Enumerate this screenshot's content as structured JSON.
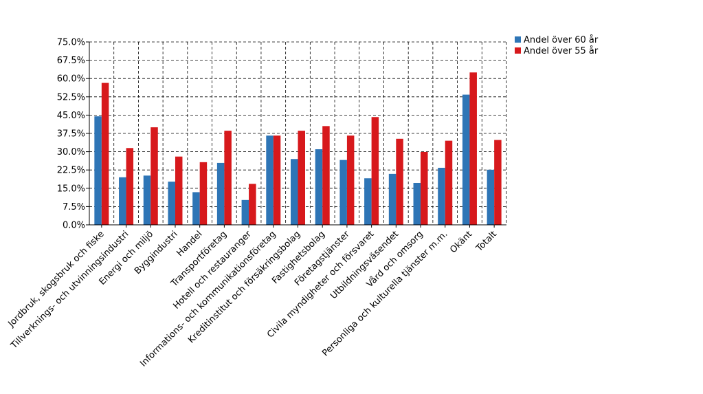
{
  "chart_data": {
    "type": "bar",
    "title": "",
    "xlabel": "",
    "ylabel": "",
    "ylim": [
      0,
      75
    ],
    "y_tick_step": 7.5,
    "y_tick_labels": [
      "0.0%",
      "7.5%",
      "15.0%",
      "22.5%",
      "30.0%",
      "37.5%",
      "45.0%",
      "52.5%",
      "60.0%",
      "67.5%",
      "75.0%"
    ],
    "grid": "dashed",
    "legend_position": "top-right",
    "categories": [
      "Jordbruk, skogsbruk och fiske",
      "Tillverknings- och utvinningsindustri",
      "Energi och miljö",
      "Byggindustri",
      "Handel",
      "Transportföretag",
      "Hotell och restauranger",
      "Informations- och kommunikationsföretag",
      "Kreditinstitut och försäkringsbolag",
      "Fastighetsbolag",
      "Företagstjänster",
      "Civila myndigheter och försvaret",
      "Utbildningsväsendet",
      "Vård och omsorg",
      "Personliga och kulturella tjänster m.m.",
      "Okänt",
      "Totalt"
    ],
    "series": [
      {
        "name": "Andel över 60 år",
        "color": "#2e75b6",
        "values": [
          44.5,
          19.5,
          20.2,
          17.7,
          13.4,
          25.4,
          10.2,
          36.6,
          27.0,
          31.0,
          26.6,
          19.1,
          20.9,
          17.2,
          23.4,
          53.4,
          22.6
        ]
      },
      {
        "name": "Andel över 55 år",
        "color": "#d7191c",
        "values": [
          58.2,
          31.5,
          40.0,
          28.0,
          25.7,
          38.6,
          16.8,
          36.6,
          38.6,
          40.5,
          36.6,
          44.2,
          35.3,
          29.9,
          34.5,
          62.5,
          34.8
        ]
      }
    ]
  }
}
